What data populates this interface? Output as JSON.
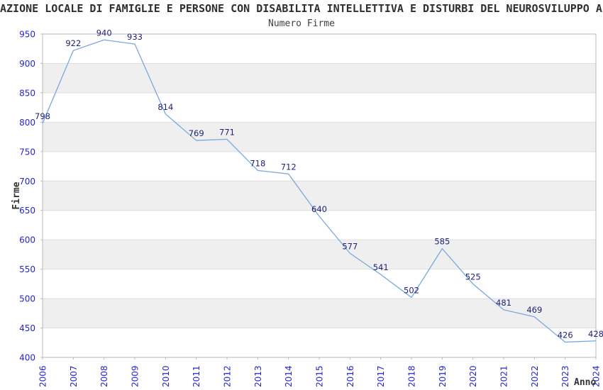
{
  "chart_data": {
    "type": "line",
    "title": "AZIONE LOCALE DI FAMIGLIE E PERSONE CON DISABILITA INTELLETTIVA E DISTURBI DEL NEUROSVILUPPO APS",
    "subtitle": "Numero Firme",
    "xlabel": "Anno",
    "ylabel": "Firme",
    "categories": [
      "2006",
      "2007",
      "2008",
      "2009",
      "2010",
      "2011",
      "2012",
      "2013",
      "2014",
      "2015",
      "2016",
      "2017",
      "2018",
      "2019",
      "2020",
      "2021",
      "2022",
      "2023",
      "2024"
    ],
    "values": [
      798,
      922,
      940,
      933,
      814,
      769,
      771,
      718,
      712,
      640,
      577,
      541,
      502,
      585,
      525,
      481,
      469,
      426,
      428
    ],
    "ylim": [
      400,
      950
    ],
    "ytick_step": 50,
    "grid": "horizontal-bands",
    "legend_position": "none",
    "colors": {
      "line": "#7ba7dd",
      "tick_label": "#2525cd",
      "point_label": "#222277",
      "band": "#efefef",
      "grid": "#dedede",
      "frame": "#b9b9b9",
      "text": "#333333"
    }
  }
}
